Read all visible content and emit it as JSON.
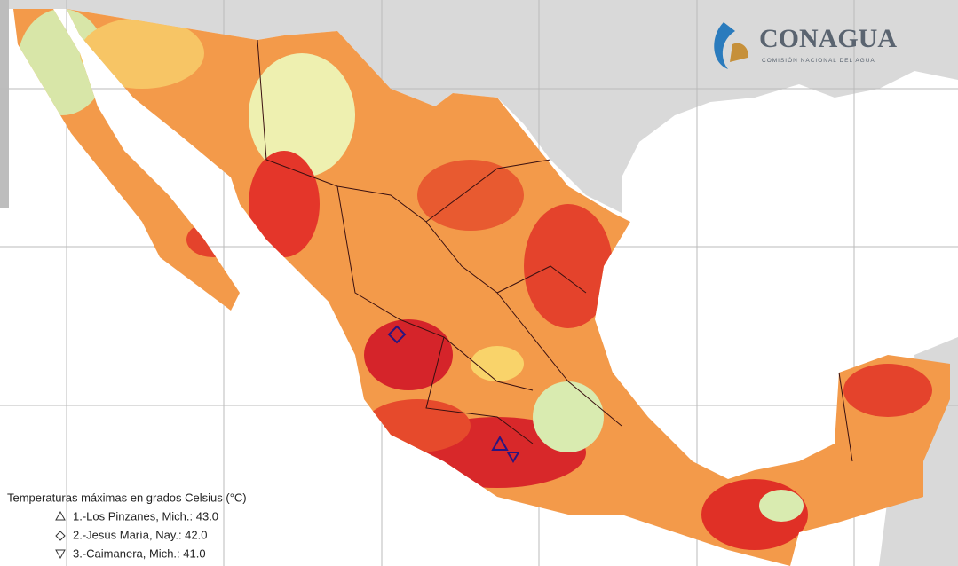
{
  "logo": {
    "name": "CONAGUA",
    "subtitle": "COMISIÓN NACIONAL DEL AGUA"
  },
  "legend": {
    "title": "Temperaturas máximas en grados Celsius (°C)",
    "items": [
      "1.-Los Pinzanes, Mich.: 43.0",
      "2.-Jesús María, Nay.: 42.0",
      "3.-Caimanera, Mich.: 41.0"
    ]
  }
}
